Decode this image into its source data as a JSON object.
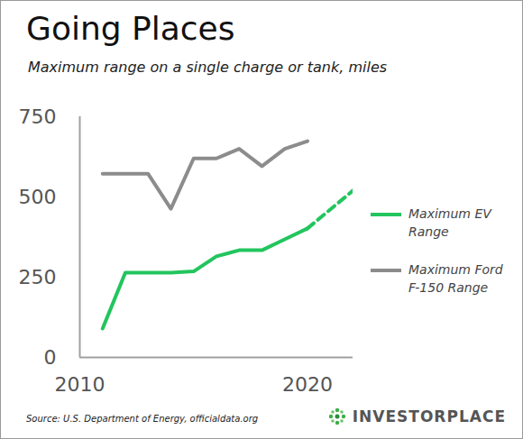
{
  "chart_data": {
    "type": "line",
    "title": "Going Places",
    "subtitle": "Maximum range on a single charge or tank, miles",
    "caption": "Source: U.S. Department of Energy,  officialdata.org",
    "logo": "INVESTORPLACE",
    "x": [
      2011,
      2012,
      2013,
      2014,
      2015,
      2016,
      2017,
      2018,
      2019,
      2020,
      2022
    ],
    "series": [
      {
        "name": "Maximum EV Range",
        "color": "#22c55e",
        "line_style": "solid",
        "values": [
          90,
          264,
          264,
          264,
          268,
          315,
          334,
          334,
          368,
          402,
          null
        ],
        "projected_values": [
          null,
          null,
          null,
          null,
          null,
          null,
          null,
          null,
          null,
          402,
          520
        ]
      },
      {
        "name": "Maximum Ford F-150 Range",
        "color": "#8c8c8c",
        "line_style": "solid",
        "values": [
          572,
          572,
          572,
          463,
          620,
          620,
          650,
          596,
          650,
          674,
          null
        ]
      }
    ],
    "xlim": [
      2010,
      2022
    ],
    "xticks": [
      2010,
      2020
    ],
    "ylim": [
      0,
      750
    ],
    "yticks": [
      0,
      250,
      500,
      750
    ],
    "grid": false,
    "legend": "right"
  }
}
